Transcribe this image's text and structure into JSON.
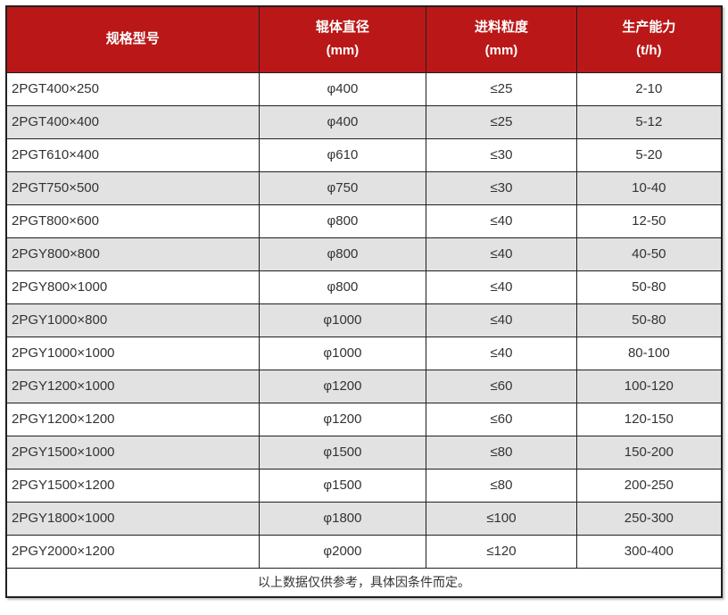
{
  "colors": {
    "header_bg": "#ba1818",
    "header_text": "#ffffff",
    "stripe_bg": "#e2e2e2",
    "row_bg": "#ffffff",
    "border_color": "#1f1f1f",
    "text_color": "#333333"
  },
  "table": {
    "columns": [
      {
        "label": "规格型号",
        "unit": ""
      },
      {
        "label": "辊体直径",
        "unit": "(mm)"
      },
      {
        "label": "进料粒度",
        "unit": "(mm)"
      },
      {
        "label": "生产能力",
        "unit": "(t/h)"
      }
    ],
    "rows": [
      [
        "2PGT400×250",
        "φ400",
        "≤25",
        "2-10"
      ],
      [
        "2PGT400×400",
        "φ400",
        "≤25",
        "5-12"
      ],
      [
        "2PGT610×400",
        "φ610",
        "≤30",
        "5-20"
      ],
      [
        "2PGT750×500",
        "φ750",
        "≤30",
        "10-40"
      ],
      [
        "2PGT800×600",
        "φ800",
        "≤40",
        "12-50"
      ],
      [
        "2PGY800×800",
        "φ800",
        "≤40",
        "40-50"
      ],
      [
        "2PGY800×1000",
        "φ800",
        "≤40",
        "50-80"
      ],
      [
        "2PGY1000×800",
        "φ1000",
        "≤40",
        "50-80"
      ],
      [
        "2PGY1000×1000",
        "φ1000",
        "≤40",
        "80-100"
      ],
      [
        "2PGY1200×1000",
        "φ1200",
        "≤60",
        "100-120"
      ],
      [
        "2PGY1200×1200",
        "φ1200",
        "≤60",
        "120-150"
      ],
      [
        "2PGY1500×1000",
        "φ1500",
        "≤80",
        "150-200"
      ],
      [
        "2PGY1500×1200",
        "φ1500",
        "≤80",
        "200-250"
      ],
      [
        "2PGY1800×1000",
        "φ1800",
        "≤100",
        "250-300"
      ],
      [
        "2PGY2000×1200",
        "φ2000",
        "≤120",
        "300-400"
      ]
    ],
    "footnote": "以上数据仅供参考，具体因条件而定。"
  }
}
